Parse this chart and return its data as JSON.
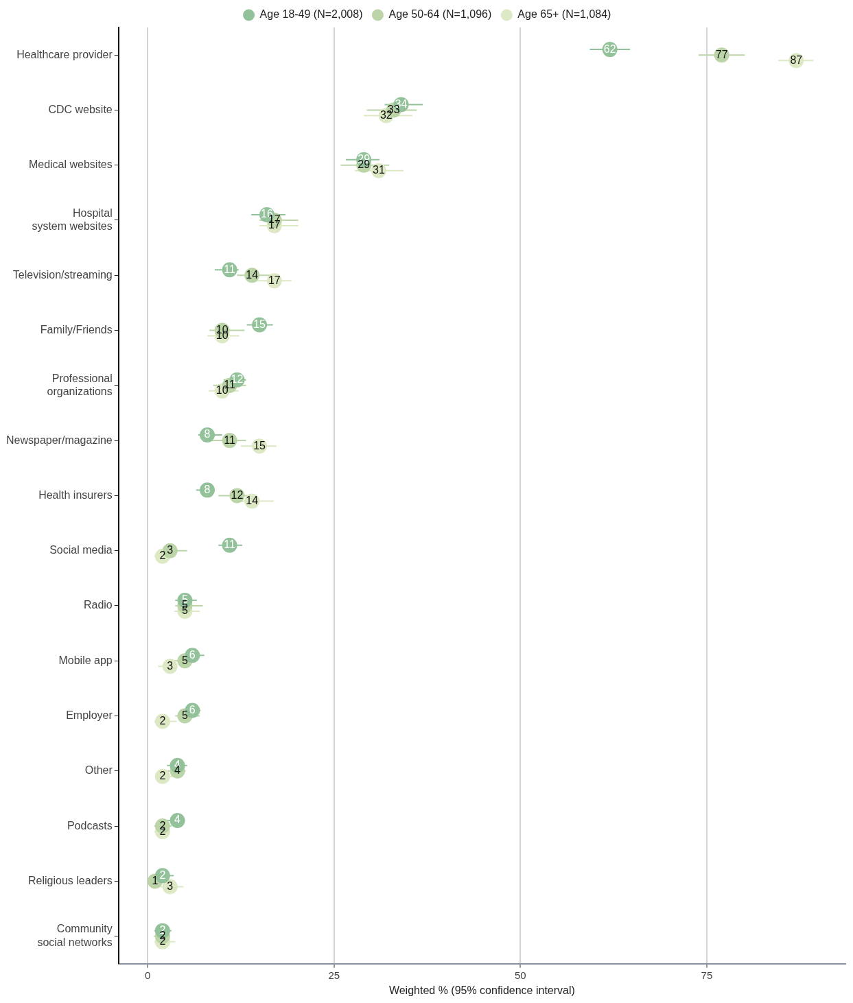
{
  "chart_data": {
    "type": "scatter",
    "orientation": "horizontal",
    "xlabel": "Weighted % (95% confidence interval)",
    "categories": [
      "Healthcare provider",
      "CDC website",
      "Medical websites",
      "Hospital system websites",
      "Television/streaming",
      "Family/Friends",
      "Professional organizations",
      "Newspaper/magazine",
      "Health insurers",
      "Social media",
      "Radio",
      "Mobile app",
      "Employer",
      "Other",
      "Podcasts",
      "Religious leaders",
      "Community social networks"
    ],
    "series": [
      {
        "name": "Age 18-49 (N=2,008)",
        "color": "#93c29a",
        "values": [
          62,
          34,
          29,
          16,
          11,
          15,
          12,
          8,
          8,
          11,
          5,
          6,
          6,
          4,
          4,
          2,
          2
        ],
        "errors": [
          [
            59.3,
            64.7
          ],
          [
            31.8,
            36.9
          ],
          [
            26.6,
            31.1
          ],
          [
            13.9,
            18.5
          ],
          [
            9,
            12.2
          ],
          [
            13.3,
            16.8
          ],
          [
            10.2,
            13.2
          ],
          [
            6.8,
            10
          ],
          [
            6.5,
            8.7
          ],
          [
            9.5,
            12.7
          ],
          [
            3.7,
            6.6
          ],
          [
            4.6,
            7.6
          ],
          [
            4.4,
            7.1
          ],
          [
            2.6,
            5.3
          ],
          [
            2.6,
            5
          ],
          [
            1.1,
            3.5
          ],
          [
            0.9,
            3.2
          ]
        ]
      },
      {
        "name": "Age 50-64 (N=1,096)",
        "color": "#bcd5a8",
        "values": [
          77,
          33,
          29,
          17,
          14,
          10,
          11,
          11,
          12,
          3,
          5,
          5,
          5,
          4,
          2,
          1,
          2
        ],
        "errors": [
          [
            73.9,
            80.1
          ],
          [
            29.4,
            36.1
          ],
          [
            25.9,
            32.4
          ],
          [
            15,
            20.2
          ],
          [
            12,
            17
          ],
          [
            8.3,
            13
          ],
          [
            8.8,
            13.2
          ],
          [
            8.2,
            13.2
          ],
          [
            9.5,
            13.9
          ],
          [
            1.9,
            5.3
          ],
          [
            3.7,
            7.4
          ],
          [
            3,
            6.5
          ],
          [
            3.7,
            7
          ],
          [
            2.3,
            5.1
          ],
          [
            0.9,
            3.2
          ],
          [
            0.5,
            2.4
          ],
          [
            0.8,
            3
          ]
        ]
      },
      {
        "name": "Age 65+ (N=1,084)",
        "color": "#dde9c4",
        "values": [
          87,
          32,
          31,
          17,
          17,
          10,
          10,
          15,
          14,
          2,
          5,
          3,
          2,
          2,
          2,
          3,
          2
        ],
        "errors": [
          [
            84.6,
            89.3
          ],
          [
            29,
            35.5
          ],
          [
            27.8,
            34.3
          ],
          [
            15,
            20.2
          ],
          [
            14.4,
            19.3
          ],
          [
            8,
            12.3
          ],
          [
            8.2,
            12.2
          ],
          [
            12.5,
            17.3
          ],
          [
            12.3,
            16.9
          ],
          [
            0.9,
            3.7
          ],
          [
            3.6,
            7
          ],
          [
            1.4,
            3.9
          ],
          [
            0.9,
            3.9
          ],
          [
            1.2,
            3.7
          ],
          [
            0.9,
            3
          ],
          [
            1.7,
            4.8
          ],
          [
            0.9,
            3.7
          ]
        ]
      }
    ],
    "xlim": [
      -3.9,
      93.6
    ],
    "xticks": [
      0,
      25,
      50,
      75
    ],
    "grid": "x",
    "legend": "top",
    "marker": "circle",
    "data_labels": true
  }
}
